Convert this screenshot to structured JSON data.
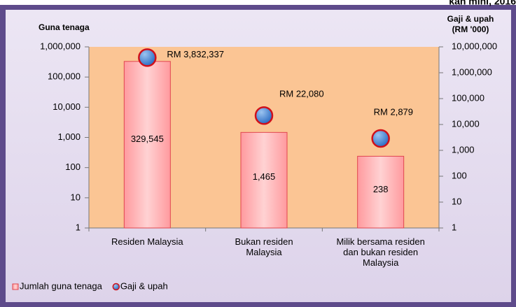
{
  "chart_data": {
    "type": "bar",
    "title": "kan mini, 2016",
    "ylabel": "Guna tenaga",
    "y2label": "Gaji & upah\n(RM '000)",
    "categories": [
      "Residen Malaysia",
      "Bukan residen\nMalaysia",
      "Milik bersama residen\ndan bukan residen\nMalaysia"
    ],
    "yscale": "log",
    "y2scale": "log",
    "ylim": [
      1,
      1000000
    ],
    "yticks": [
      1,
      10,
      100,
      {
        "value": 1000,
        "label": "1,000"
      },
      {
        "value": 10000,
        "label": "10,000"
      },
      {
        "value": 100000,
        "label": "100,000"
      },
      {
        "value": 1000000,
        "label": "1,000,000"
      }
    ],
    "y2lim": [
      1,
      10000000
    ],
    "y2ticks": [
      1,
      10,
      100,
      {
        "value": 1000,
        "label": "1,000"
      },
      {
        "value": 10000,
        "label": "10,000"
      },
      {
        "value": 100000,
        "label": "100,000"
      },
      {
        "value": 1000000,
        "label": "1,000,000"
      },
      {
        "value": 10000000,
        "label": "10,000,000"
      }
    ],
    "legend": "bottom-left",
    "series": [
      {
        "name": "Jumlah guna tenaga",
        "type": "bar",
        "axis": "y",
        "color": "#ffb3b5",
        "values": [
          329545,
          1465,
          238
        ],
        "value_labels": [
          "329,545",
          "1,465",
          "238"
        ]
      },
      {
        "name": "Gaji & upah",
        "type": "scatter",
        "axis": "y2",
        "color": "#3f7fd0",
        "values": [
          3832337,
          22080,
          2879
        ],
        "value_labels": [
          "RM 3,832,337",
          "RM 22,080",
          "RM 2,879"
        ]
      }
    ]
  }
}
